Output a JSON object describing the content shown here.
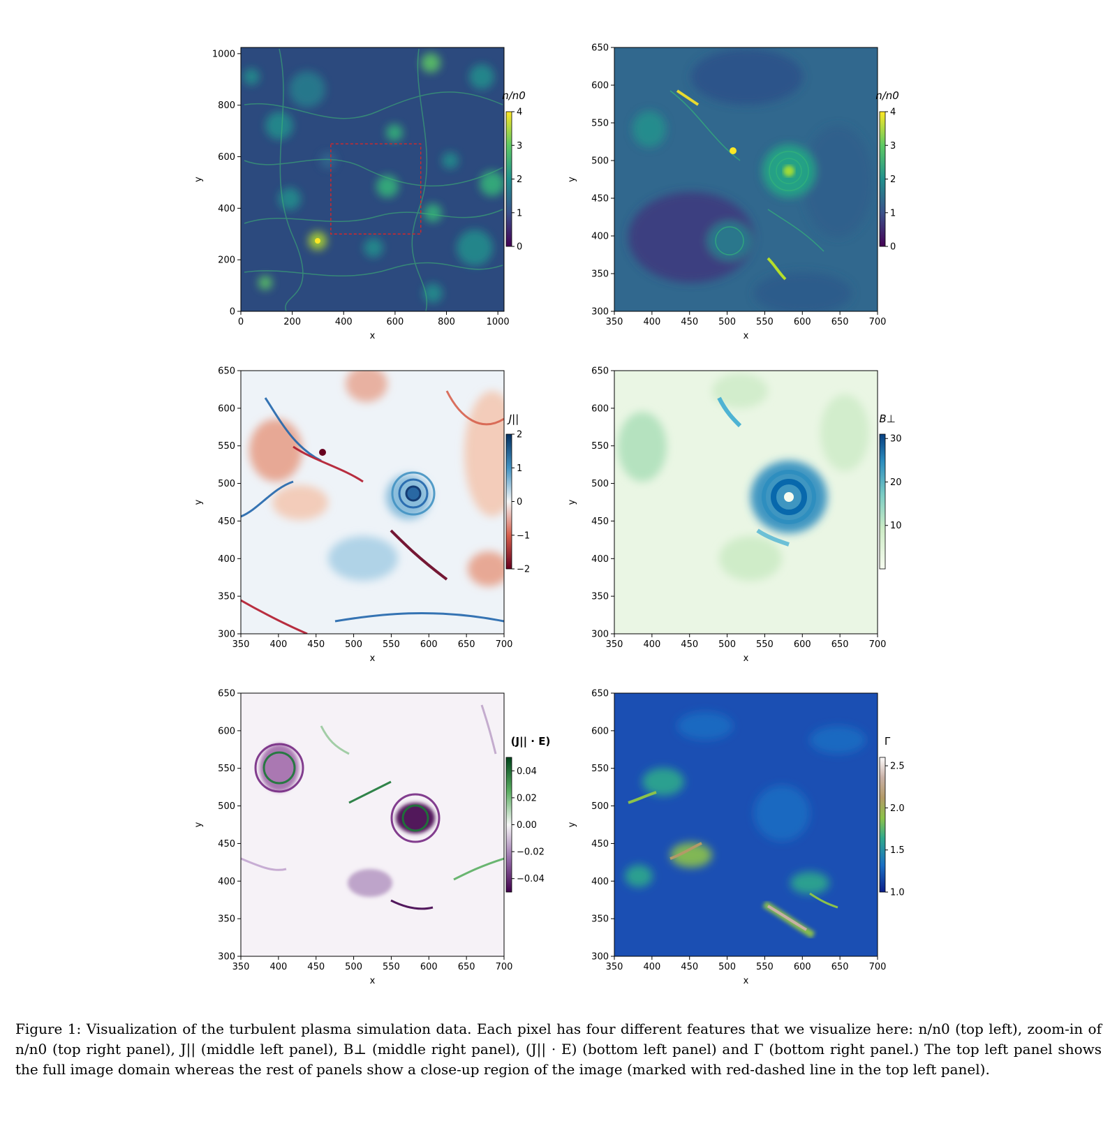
{
  "figure": {
    "caption_label": "Figure 1:",
    "caption_text": "Visualization of the turbulent plasma simulation data. Each pixel has four different features that we visualize here: n/n0 (top left), zoom-in of n/n0 (top right panel), J|| (middle left panel), B⊥ (middle right panel), (J|| · E) (bottom left panel) and Γ (bottom right panel.) The top left panel shows the full image domain whereas the rest of panels show a close-up region of the image (marked with red-dashed line in the top left panel)."
  },
  "chart_data": [
    {
      "id": "top-left",
      "type": "heatmap",
      "colormap": "viridis",
      "xlabel": "x",
      "ylabel": "y",
      "xlim": [
        0,
        1024
      ],
      "ylim": [
        0,
        1024
      ],
      "xticks": [
        0,
        200,
        400,
        600,
        800,
        1000
      ],
      "yticks": [
        0,
        200,
        400,
        600,
        800,
        1000
      ],
      "colorbar": {
        "label": "n/n0",
        "range": [
          0,
          4
        ],
        "ticks": [
          0,
          1,
          2,
          3,
          4
        ]
      },
      "zoom_box": {
        "x": [
          350,
          700
        ],
        "y": [
          300,
          650
        ],
        "style": "red-dashed"
      }
    },
    {
      "id": "top-right",
      "type": "heatmap",
      "colormap": "viridis",
      "xlabel": "x",
      "ylabel": "y",
      "xlim": [
        350,
        700
      ],
      "ylim": [
        300,
        650
      ],
      "xticks": [
        350,
        400,
        450,
        500,
        550,
        600,
        650,
        700
      ],
      "yticks": [
        300,
        350,
        400,
        450,
        500,
        550,
        600,
        650
      ],
      "colorbar": {
        "label": "n/n0",
        "range": [
          0,
          4
        ],
        "ticks": [
          0,
          1,
          2,
          3,
          4
        ]
      }
    },
    {
      "id": "middle-left",
      "type": "heatmap",
      "colormap": "RdBu",
      "xlabel": "x",
      "ylabel": "y",
      "xlim": [
        350,
        700
      ],
      "ylim": [
        300,
        650
      ],
      "xticks": [
        350,
        400,
        450,
        500,
        550,
        600,
        650,
        700
      ],
      "yticks": [
        300,
        350,
        400,
        450,
        500,
        550,
        600,
        650
      ],
      "colorbar": {
        "label": "J||",
        "range": [
          -2,
          2
        ],
        "ticks": [
          2,
          1,
          0,
          -1,
          -2
        ],
        "tick_labels": [
          "2",
          "1",
          "0",
          "−1",
          "−2"
        ]
      }
    },
    {
      "id": "middle-right",
      "type": "heatmap",
      "colormap": "GnBu",
      "xlabel": "x",
      "ylabel": "y",
      "xlim": [
        350,
        700
      ],
      "ylim": [
        300,
        650
      ],
      "xticks": [
        350,
        400,
        450,
        500,
        550,
        600,
        650,
        700
      ],
      "yticks": [
        300,
        350,
        400,
        450,
        500,
        550,
        600,
        650
      ],
      "colorbar": {
        "label": "B⊥",
        "range": [
          0,
          31
        ],
        "ticks": [
          30,
          20,
          10
        ],
        "tick_labels": [
          "30",
          "20",
          "10"
        ]
      }
    },
    {
      "id": "bottom-left",
      "type": "heatmap",
      "colormap": "PRGn",
      "xlabel": "x",
      "ylabel": "y",
      "xlim": [
        350,
        700
      ],
      "ylim": [
        300,
        650
      ],
      "xticks": [
        350,
        400,
        450,
        500,
        550,
        600,
        650,
        700
      ],
      "yticks": [
        300,
        350,
        400,
        450,
        500,
        550,
        600,
        650
      ],
      "colorbar": {
        "label": "(J|| · E)",
        "range": [
          -0.05,
          0.05
        ],
        "ticks": [
          0.04,
          0.02,
          0,
          -0.02,
          -0.04
        ],
        "tick_labels": [
          "0.04",
          "0.02",
          "0.00",
          "−0.02",
          "−0.04"
        ]
      }
    },
    {
      "id": "bottom-right",
      "type": "heatmap",
      "colormap": "gist_earth",
      "xlabel": "x",
      "ylabel": "y",
      "xlim": [
        350,
        700
      ],
      "ylim": [
        300,
        650
      ],
      "xticks": [
        350,
        400,
        450,
        500,
        550,
        600,
        650,
        700
      ],
      "yticks": [
        300,
        350,
        400,
        450,
        500,
        550,
        600,
        650
      ],
      "colorbar": {
        "label": "Γ",
        "range": [
          1.0,
          2.6
        ],
        "ticks": [
          2.5,
          2.0,
          1.5,
          1.0
        ],
        "tick_labels": [
          "2.5",
          "2.0",
          "1.5",
          "1.0"
        ]
      }
    }
  ]
}
